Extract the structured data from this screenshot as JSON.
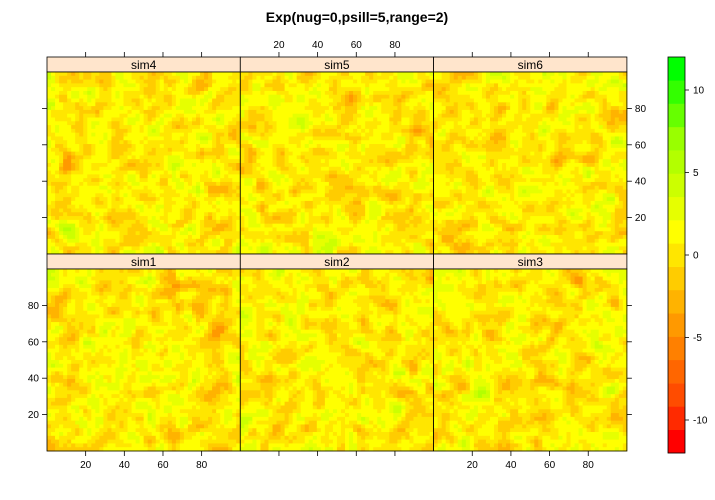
{
  "chart_data": {
    "type": "heatmap",
    "title": "Exp(nug=0,psill=5,range=2)",
    "panels": [
      {
        "name": "sim4",
        "row": 0,
        "col": 0
      },
      {
        "name": "sim5",
        "row": 0,
        "col": 1
      },
      {
        "name": "sim6",
        "row": 0,
        "col": 2
      },
      {
        "name": "sim1",
        "row": 1,
        "col": 0
      },
      {
        "name": "sim2",
        "row": 1,
        "col": 1
      },
      {
        "name": "sim3",
        "row": 1,
        "col": 2
      }
    ],
    "x_ticks": [
      "20",
      "40",
      "60",
      "80"
    ],
    "y_ticks": [
      "20",
      "40",
      "60",
      "80"
    ],
    "xlim": [
      0,
      100
    ],
    "ylim": [
      0,
      100
    ],
    "colorbar": {
      "range": [
        -12,
        12
      ],
      "ticks": [
        "-10",
        "-5",
        "0",
        "5",
        "10"
      ],
      "tick_values": [
        -10,
        -5,
        0,
        5,
        10
      ],
      "colors": [
        "#FF0000",
        "#FF2A00",
        "#FF4C00",
        "#FF6600",
        "#FF8000",
        "#FF9900",
        "#FFB300",
        "#FFCC00",
        "#FFE600",
        "#FFFF00",
        "#E6FF00",
        "#CCFF00",
        "#B3FF00",
        "#99FF00",
        "#66FF00",
        "#33FF00",
        "#00FF00"
      ]
    },
    "colors": {
      "strip_bg": "#FFE5CC",
      "yellow": "#FFFF00",
      "red": "#FF0000",
      "green": "#00FF00"
    }
  }
}
